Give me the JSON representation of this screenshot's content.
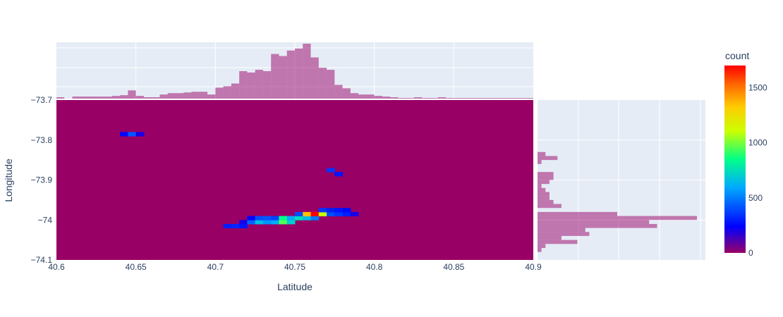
{
  "chart_data": {
    "type": "heatmap",
    "subtype": "density_heatmap_with_marginal_histograms",
    "xlabel": "Latitude",
    "ylabel": "Longitude",
    "xlim": [
      40.6,
      40.9
    ],
    "ylim": [
      -74.1,
      -73.7
    ],
    "xticks": [
      "40.6",
      "40.65",
      "40.7",
      "40.75",
      "40.8",
      "40.85",
      "40.9"
    ],
    "xtick_values": [
      40.6,
      40.65,
      40.7,
      40.75,
      40.8,
      40.85,
      40.9
    ],
    "yticks": [
      "−73.7",
      "−73.8",
      "−73.9",
      "−74",
      "−74.1"
    ],
    "ytick_values": [
      -73.7,
      -73.8,
      -73.9,
      -74.0,
      -74.1
    ],
    "colorbar": {
      "title": "count",
      "range": [
        0,
        1700
      ],
      "ticks": [
        "0",
        "500",
        "1000",
        "1500"
      ],
      "tick_values": [
        0,
        500,
        1000,
        1500
      ],
      "colors": [
        "#990066",
        "#0000ff",
        "#00aaff",
        "#00ff88",
        "#ccff00",
        "#ffcc00",
        "#ff6600",
        "#ff0000"
      ]
    },
    "heatmap_cells": {
      "x_bin_width": 0.005,
      "y_bin_width": 0.01,
      "note_units": "x = latitude bin start, y = longitude bin start, v = count",
      "cells": [
        {
          "x": 40.64,
          "y": -73.79,
          "v": 250
        },
        {
          "x": 40.645,
          "y": -73.79,
          "v": 420
        },
        {
          "x": 40.65,
          "y": -73.79,
          "v": 200
        },
        {
          "x": 40.77,
          "y": -73.88,
          "v": 350
        },
        {
          "x": 40.775,
          "y": -73.89,
          "v": 280
        },
        {
          "x": 40.705,
          "y": -74.02,
          "v": 300
        },
        {
          "x": 40.71,
          "y": -74.02,
          "v": 320
        },
        {
          "x": 40.715,
          "y": -74.02,
          "v": 280
        },
        {
          "x": 40.715,
          "y": -74.01,
          "v": 200
        },
        {
          "x": 40.72,
          "y": -74.01,
          "v": 450
        },
        {
          "x": 40.72,
          "y": -74.0,
          "v": 250
        },
        {
          "x": 40.725,
          "y": -74.01,
          "v": 650
        },
        {
          "x": 40.725,
          "y": -74.0,
          "v": 400
        },
        {
          "x": 40.73,
          "y": -74.01,
          "v": 550
        },
        {
          "x": 40.73,
          "y": -74.0,
          "v": 420
        },
        {
          "x": 40.735,
          "y": -74.01,
          "v": 600
        },
        {
          "x": 40.735,
          "y": -74.0,
          "v": 380
        },
        {
          "x": 40.74,
          "y": -74.01,
          "v": 950
        },
        {
          "x": 40.74,
          "y": -74.0,
          "v": 850
        },
        {
          "x": 40.745,
          "y": -74.01,
          "v": 700
        },
        {
          "x": 40.745,
          "y": -74.0,
          "v": 600
        },
        {
          "x": 40.75,
          "y": -74.0,
          "v": 750
        },
        {
          "x": 40.75,
          "y": -73.99,
          "v": 400
        },
        {
          "x": 40.755,
          "y": -74.0,
          "v": 650
        },
        {
          "x": 40.755,
          "y": -73.99,
          "v": 1350
        },
        {
          "x": 40.76,
          "y": -74.0,
          "v": 500
        },
        {
          "x": 40.76,
          "y": -73.99,
          "v": 1700
        },
        {
          "x": 40.765,
          "y": -73.99,
          "v": 1100
        },
        {
          "x": 40.765,
          "y": -73.98,
          "v": 350
        },
        {
          "x": 40.77,
          "y": -73.99,
          "v": 400
        },
        {
          "x": 40.77,
          "y": -73.98,
          "v": 300
        },
        {
          "x": 40.775,
          "y": -73.99,
          "v": 350
        },
        {
          "x": 40.775,
          "y": -73.98,
          "v": 280
        },
        {
          "x": 40.78,
          "y": -73.99,
          "v": 300
        },
        {
          "x": 40.78,
          "y": -73.98,
          "v": 250
        },
        {
          "x": 40.785,
          "y": -73.99,
          "v": 200
        }
      ]
    },
    "marginal_x_histogram": {
      "type": "bar",
      "x_bin_width": 0.005,
      "x_start": 40.6,
      "values": [
        2,
        0,
        3,
        3,
        3,
        3,
        3,
        4,
        5,
        12,
        4,
        2,
        2,
        6,
        8,
        8,
        9,
        10,
        10,
        6,
        16,
        18,
        22,
        40,
        38,
        42,
        40,
        65,
        62,
        70,
        73,
        80,
        60,
        45,
        42,
        20,
        15,
        8,
        6,
        6,
        4,
        3,
        2,
        1,
        1,
        2,
        1,
        1,
        2,
        1,
        1,
        1,
        1,
        1,
        1,
        1,
        1,
        1,
        1,
        1
      ]
    },
    "marginal_y_histogram": {
      "type": "bar",
      "y_bin_width": 0.01,
      "y_start": -74.1,
      "values": [
        0,
        0,
        1,
        2,
        10,
        6,
        13,
        12,
        30,
        28,
        40,
        20,
        0,
        6,
        4,
        3,
        3,
        2,
        1,
        3,
        4,
        4,
        0,
        0,
        1,
        5,
        2,
        0,
        0,
        0,
        0,
        0,
        0,
        0,
        0,
        0,
        0,
        0,
        0,
        0
      ],
      "x_max": 4000
    },
    "bar_color": "rgba(153,0,102,0.5)",
    "plot_bg": "#e5ecf6"
  }
}
